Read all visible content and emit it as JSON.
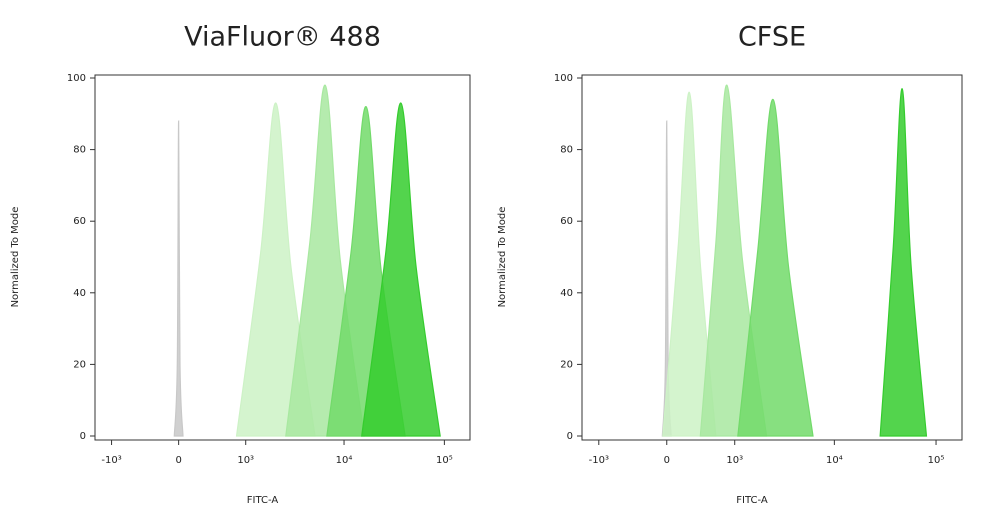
{
  "chart_data": [
    {
      "type": "histogram-overlay",
      "title": "ViaFluor® 488",
      "x_label": "FITC-A",
      "y_label": "Normalized To Mode",
      "x_scale": "biexponential",
      "xlim": [
        -1500,
        180000
      ],
      "xticks": [
        {
          "value": -1000,
          "label": "-10³"
        },
        0,
        {
          "value": 1000,
          "label": "10³"
        },
        {
          "value": 10000,
          "label": "10⁴"
        },
        {
          "value": 100000,
          "label": "10⁵"
        }
      ],
      "ylim": [
        0,
        100
      ],
      "yticks": [
        0,
        20,
        40,
        60,
        80,
        100
      ],
      "series": [
        {
          "color": "#c8c8c8",
          "x": [
            -45,
            -14,
            0,
            14,
            45
          ],
          "values": [
            0,
            20,
            88,
            20,
            0
          ]
        },
        {
          "color": "#cdf2c6",
          "x": [
            790,
            1440,
            2070,
            2950,
            5130
          ],
          "values": [
            0,
            51,
            93,
            47,
            0
          ]
        },
        {
          "color": "#a8e8a0",
          "x": [
            2610,
            4550,
            6480,
            9180,
            15900
          ],
          "values": [
            0,
            54,
            98,
            49,
            0
          ]
        },
        {
          "color": "#72da6a",
          "x": [
            6740,
            11700,
            16600,
            23500,
            40600
          ],
          "values": [
            0,
            51,
            92,
            46,
            0
          ]
        },
        {
          "color": "#35cc2e",
          "x": [
            15000,
            26000,
            36900,
            52400,
            90800
          ],
          "values": [
            0,
            51,
            93,
            47,
            0
          ]
        }
      ]
    },
    {
      "type": "histogram-overlay",
      "title": "CFSE",
      "x_label": "FITC-A",
      "y_label": "Normalized To Mode",
      "x_scale": "biexponential",
      "xlim": [
        -1500,
        180000
      ],
      "xticks": [
        {
          "value": -1000,
          "label": "-10³"
        },
        0,
        {
          "value": 1000,
          "label": "10³"
        },
        {
          "value": 10000,
          "label": "10⁴"
        },
        {
          "value": 100000,
          "label": "10⁵"
        }
      ],
      "ylim": [
        0,
        100
      ],
      "yticks": [
        0,
        20,
        40,
        60,
        80,
        100
      ],
      "series": [
        {
          "color": "#c8c8c8",
          "x": [
            -45,
            -14,
            0,
            14,
            45
          ],
          "values": [
            0,
            20,
            88,
            20,
            0
          ]
        },
        {
          "color": "#cdf2c6",
          "x": [
            -40,
            118,
            240,
            376,
            610
          ],
          "values": [
            0,
            53,
            96,
            48,
            0
          ]
        },
        {
          "color": "#a8e8a0",
          "x": [
            376,
            610,
            820,
            1210,
            2130
          ],
          "values": [
            0,
            54,
            98,
            49,
            0
          ]
        },
        {
          "color": "#72da6a",
          "x": [
            1080,
            1740,
            2480,
            3540,
            6160
          ],
          "values": [
            0,
            52,
            94,
            47,
            0
          ]
        },
        {
          "color": "#35cc2e",
          "x": [
            28200,
            38000,
            46500,
            56700,
            80500
          ],
          "values": [
            0,
            53,
            97,
            48,
            0
          ]
        }
      ]
    }
  ]
}
